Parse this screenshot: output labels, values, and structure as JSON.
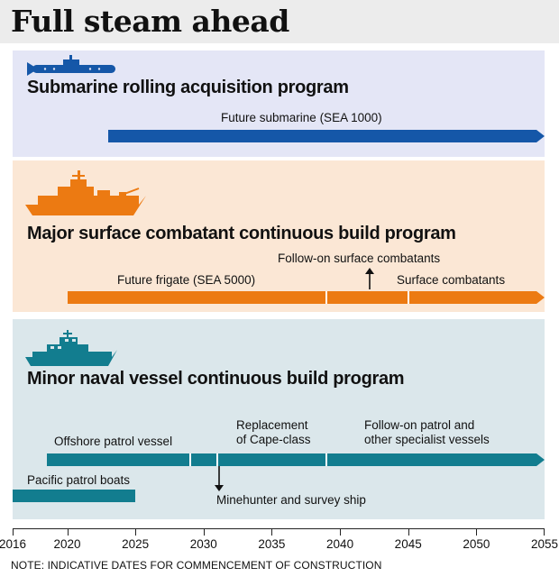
{
  "title": "Full steam ahead",
  "programs": [
    {
      "title": "Submarine rolling acquisition program",
      "icon": "submarine-icon",
      "color": "#1557a8",
      "segments": [
        {
          "label_plain": "Future submarine ",
          "label_paren": "(SEA 1000)",
          "start": 2023,
          "end": 2055
        }
      ]
    },
    {
      "title": "Major surface combatant continuous build program",
      "icon": "frigate-icon",
      "color": "#ec7a12",
      "segments": [
        {
          "label_plain": "Future frigate ",
          "label_paren": "(SEA 5000)",
          "start": 2020,
          "end": 2039
        },
        {
          "label": "Follow-on surface combatants",
          "start": 2039,
          "end": 2045
        },
        {
          "label": "Surface combatants",
          "start": 2045,
          "end": 2055
        }
      ]
    },
    {
      "title": "Minor naval vessel continuous build program",
      "icon": "patrol-vessel-icon",
      "color": "#127d8f",
      "segments": [
        {
          "label": "Offshore patrol vessel",
          "start": 2018.5,
          "end": 2029
        },
        {
          "label": "Minehunter and survey ship",
          "start": 2029,
          "end": 2031
        },
        {
          "label_line1": "Replacement",
          "label_line2": "of Cape-class",
          "start": 2031,
          "end": 2039
        },
        {
          "label_line1": "Follow-on patrol and",
          "label_line2": "other specialist vessels",
          "start": 2039,
          "end": 2055
        },
        {
          "label": "Pacific patrol boats",
          "start": 2016,
          "end": 2025
        }
      ]
    }
  ],
  "axis": {
    "ticks": [
      "2016",
      "2020",
      "2025",
      "2030",
      "2035",
      "2040",
      "2045",
      "2050",
      "2055"
    ],
    "range": [
      2016,
      2055
    ]
  },
  "note": "NOTE: INDICATIVE DATES FOR COMMENCEMENT OF CONSTRUCTION"
}
